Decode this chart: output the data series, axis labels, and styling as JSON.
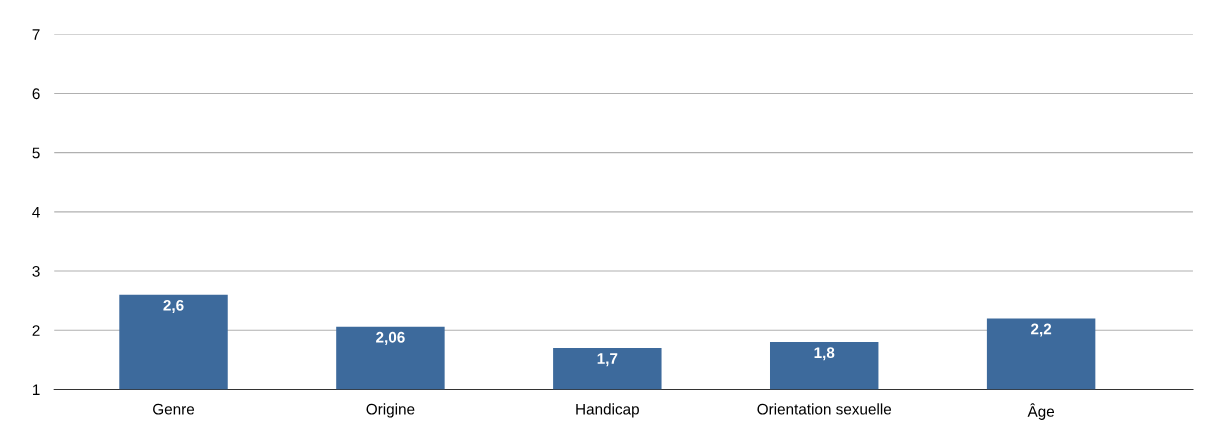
{
  "chart_data": {
    "type": "bar",
    "categories": [
      "Genre",
      "Origine",
      "Handicap",
      "Orientation sexuelle",
      "Âge"
    ],
    "values": [
      2.6,
      2.06,
      1.7,
      1.8,
      2.2
    ],
    "value_labels": [
      "2,6",
      "2,06",
      "1,7",
      "1,8",
      "2,2"
    ],
    "color": "#3d6a9c",
    "ylim": [
      1,
      7
    ],
    "yticks": [
      1,
      2,
      3,
      4,
      5,
      6,
      7
    ],
    "grid": "y",
    "legend": false
  }
}
